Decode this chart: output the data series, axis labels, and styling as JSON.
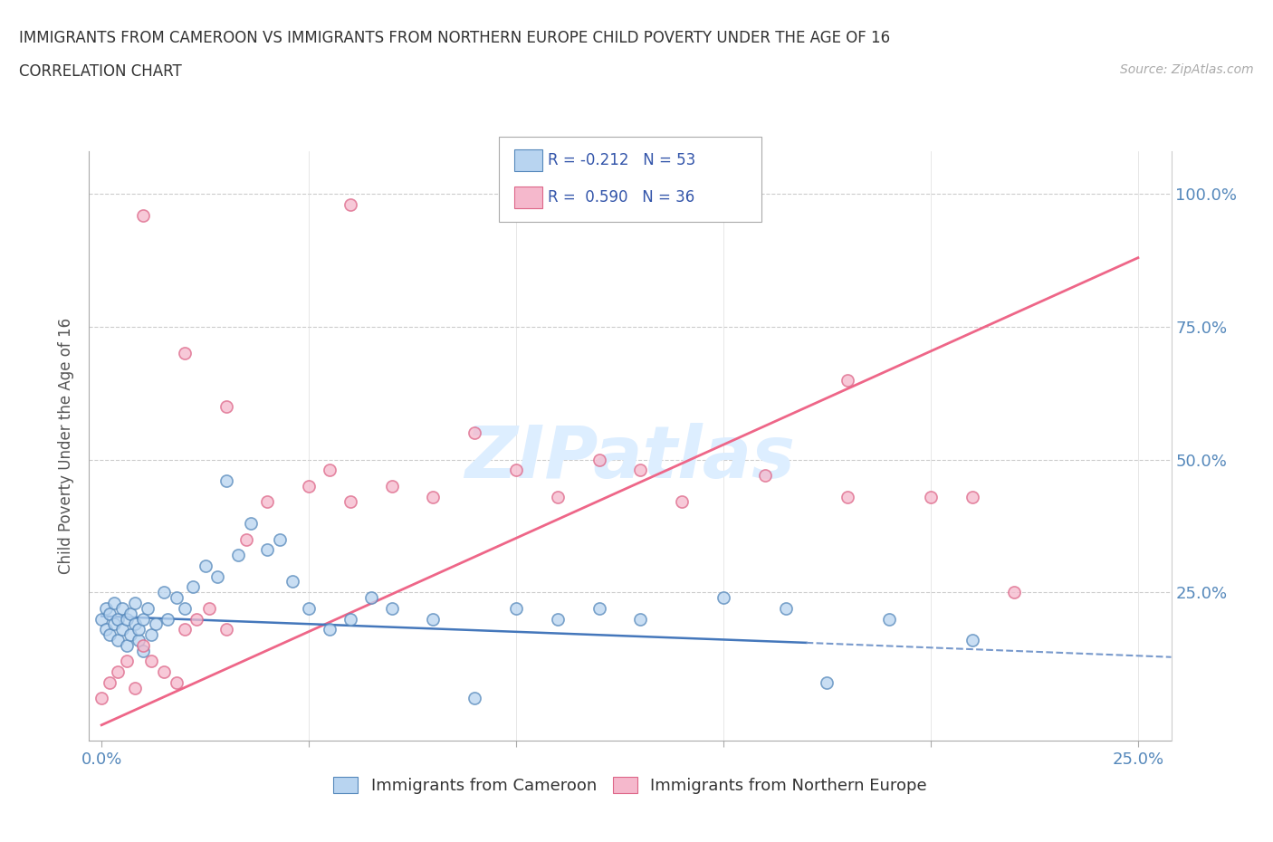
{
  "title": "IMMIGRANTS FROM CAMEROON VS IMMIGRANTS FROM NORTHERN EUROPE CHILD POVERTY UNDER THE AGE OF 16",
  "subtitle": "CORRELATION CHART",
  "source": "Source: ZipAtlas.com",
  "ylabel": "Child Poverty Under the Age of 16",
  "xlim": [
    -0.003,
    0.258
  ],
  "ylim": [
    -0.03,
    1.08
  ],
  "x_tick_positions": [
    0.0,
    0.05,
    0.1,
    0.15,
    0.2,
    0.25
  ],
  "x_tick_labels": [
    "0.0%",
    "",
    "",
    "",
    "",
    "25.0%"
  ],
  "y_tick_positions": [
    0.0,
    0.25,
    0.5,
    0.75,
    1.0
  ],
  "y_tick_labels_right": [
    "",
    "25.0%",
    "50.0%",
    "75.0%",
    "100.0%"
  ],
  "r_blue": -0.212,
  "n_blue": 53,
  "r_pink": 0.59,
  "n_pink": 36,
  "blue_fill": "#b8d4f0",
  "blue_edge": "#5588bb",
  "pink_fill": "#f5b8cc",
  "pink_edge": "#dd6688",
  "trend_blue_solid": "#4477bb",
  "trend_blue_dash": "#7799cc",
  "trend_pink": "#ee6688",
  "watermark_color": "#ddeeff",
  "blue_scatter_x": [
    0.0,
    0.001,
    0.001,
    0.002,
    0.002,
    0.003,
    0.003,
    0.004,
    0.004,
    0.005,
    0.005,
    0.006,
    0.006,
    0.007,
    0.007,
    0.008,
    0.008,
    0.009,
    0.009,
    0.01,
    0.01,
    0.011,
    0.012,
    0.013,
    0.015,
    0.016,
    0.018,
    0.02,
    0.022,
    0.025,
    0.028,
    0.03,
    0.033,
    0.036,
    0.04,
    0.043,
    0.046,
    0.05,
    0.055,
    0.06,
    0.065,
    0.07,
    0.08,
    0.09,
    0.1,
    0.11,
    0.12,
    0.13,
    0.15,
    0.165,
    0.175,
    0.19,
    0.21
  ],
  "blue_scatter_y": [
    0.2,
    0.22,
    0.18,
    0.21,
    0.17,
    0.19,
    0.23,
    0.16,
    0.2,
    0.18,
    0.22,
    0.15,
    0.2,
    0.17,
    0.21,
    0.19,
    0.23,
    0.16,
    0.18,
    0.2,
    0.14,
    0.22,
    0.17,
    0.19,
    0.25,
    0.2,
    0.24,
    0.22,
    0.26,
    0.3,
    0.28,
    0.46,
    0.32,
    0.38,
    0.33,
    0.35,
    0.27,
    0.22,
    0.18,
    0.2,
    0.24,
    0.22,
    0.2,
    0.05,
    0.22,
    0.2,
    0.22,
    0.2,
    0.24,
    0.22,
    0.08,
    0.2,
    0.16
  ],
  "pink_scatter_x": [
    0.0,
    0.002,
    0.004,
    0.006,
    0.008,
    0.01,
    0.012,
    0.015,
    0.018,
    0.02,
    0.023,
    0.026,
    0.03,
    0.035,
    0.04,
    0.05,
    0.055,
    0.06,
    0.07,
    0.08,
    0.09,
    0.1,
    0.11,
    0.12,
    0.13,
    0.14,
    0.16,
    0.18,
    0.2,
    0.21,
    0.01,
    0.02,
    0.03,
    0.06,
    0.18,
    0.22
  ],
  "pink_scatter_y": [
    0.05,
    0.08,
    0.1,
    0.12,
    0.07,
    0.15,
    0.12,
    0.1,
    0.08,
    0.18,
    0.2,
    0.22,
    0.18,
    0.35,
    0.42,
    0.45,
    0.48,
    0.42,
    0.45,
    0.43,
    0.55,
    0.48,
    0.43,
    0.5,
    0.48,
    0.42,
    0.47,
    0.43,
    0.43,
    0.43,
    0.96,
    0.7,
    0.6,
    0.98,
    0.65,
    0.25
  ],
  "pink_trend_x0": 0.0,
  "pink_trend_y0": 0.0,
  "pink_trend_x1": 0.25,
  "pink_trend_y1": 0.88,
  "blue_trend_solid_x0": 0.0,
  "blue_trend_solid_y0": 0.205,
  "blue_trend_solid_x1": 0.17,
  "blue_trend_solid_y1": 0.155,
  "blue_trend_dash_x0": 0.17,
  "blue_trend_dash_y0": 0.155,
  "blue_trend_dash_x1": 0.258,
  "blue_trend_dash_y1": 0.128
}
